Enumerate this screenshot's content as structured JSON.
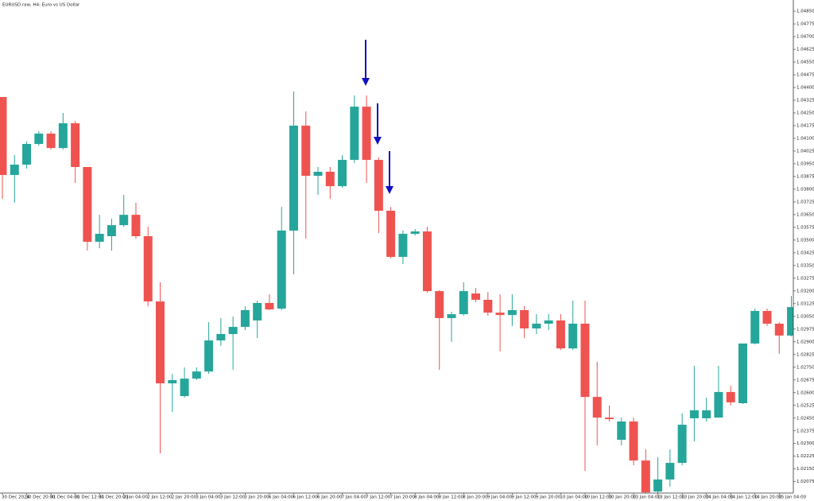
{
  "chart_data": {
    "type": "candlestick",
    "title": "EURUSD.raw, H4:  Euro vs US Dollar",
    "categories": [
      "30 Dec 2024",
      null,
      "30 Dec 20:00",
      null,
      "31 Dec 04:00",
      null,
      "31 Dec 12:00",
      null,
      "31 Dec 20:00",
      null,
      "2 Jan 04:00",
      null,
      "2 Jan 12:00",
      null,
      "2 Jan 20:00",
      null,
      "3 Jan 04:00",
      null,
      "3 Jan 12:00",
      null,
      "3 Jan 20:00",
      null,
      "6 Jan 04:00",
      null,
      "6 Jan 12:00",
      null,
      "6 Jan 20:00",
      null,
      "7 Jan 04:00",
      null,
      "7 Jan 12:00",
      null,
      "7 Jan 20:00",
      null,
      "8 Jan 04:00",
      null,
      "8 Jan 12:00",
      null,
      "8 Jan 20:00",
      null,
      "9 Jan 04:00",
      null,
      "9 Jan 12:00",
      null,
      "9 Jan 20:00",
      null,
      "10 Jan 04:00",
      null,
      "10 Jan 12:00",
      null,
      "10 Jan 20:00",
      null,
      "13 Jan 04:00",
      null,
      "13 Jan 12:00",
      null,
      "13 Jan 20:00",
      null,
      "14 Jan 04:00",
      null,
      "14 Jan 12:00",
      null,
      "14 Jan 20:00",
      null,
      "15 Jan 04:00",
      null
    ],
    "open": [
      1.04344,
      1.03884,
      1.03945,
      1.04067,
      1.04128,
      1.04043,
      1.04189,
      1.03931,
      1.0349,
      1.03523,
      1.03588,
      1.03649,
      1.03523,
      1.03138,
      1.02655,
      1.0258,
      1.02683,
      1.02725,
      1.02908,
      1.02946,
      1.02988,
      1.03026,
      1.03129,
      1.03096,
      1.03556,
      1.04175,
      1.03879,
      1.03903,
      1.03818,
      1.03973,
      1.04287,
      1.03973,
      1.03673,
      1.03401,
      1.03537,
      1.03551,
      1.03199,
      1.0304,
      1.03063,
      1.03185,
      1.03148,
      1.03072,
      1.03058,
      1.03087,
      1.02979,
      1.03007,
      1.03026,
      1.02861,
      1.03007,
      1.02575,
      1.02453,
      1.02322,
      1.0243,
      1.022,
      1.02017,
      1.02088,
      1.02186,
      1.02449,
      1.02449,
      1.02453,
      1.02604,
      1.02538,
      1.0289,
      1.03082,
      1.03007,
      1.02937
    ],
    "high": [
      1.04344,
      1.04001,
      1.04081,
      1.04142,
      1.04142,
      1.0425,
      1.04203,
      1.03931,
      1.03649,
      1.03626,
      1.03767,
      1.0372,
      1.03579,
      1.03251,
      1.02711,
      1.02749,
      1.02749,
      1.03016,
      1.0304,
      1.03049,
      1.0311,
      1.03143,
      1.0318,
      1.03696,
      1.04376,
      1.04259,
      1.03931,
      1.03931,
      1.04001,
      1.04353,
      1.04353,
      1.03987,
      1.03696,
      1.03556,
      1.03565,
      1.03579,
      1.03204,
      1.03077,
      1.03251,
      1.03218,
      1.03194,
      1.0318,
      1.0318,
      1.0311,
      1.03063,
      1.03063,
      1.03063,
      1.03143,
      1.03143,
      1.02782,
      1.02524,
      1.02453,
      1.02453,
      1.02266,
      1.02219,
      1.02266,
      1.02477,
      1.02758,
      1.02571,
      1.02758,
      1.02641,
      1.0289,
      1.03096,
      1.03096,
      1.03016,
      1.03171
    ],
    "low": [
      1.03743,
      1.0372,
      1.03921,
      1.04057,
      1.04034,
      1.04034,
      1.03837,
      1.03438,
      1.03452,
      1.03438,
      1.03579,
      1.03509,
      1.0311,
      1.02242,
      1.02486,
      1.02571,
      1.02674,
      1.02711,
      1.02876,
      1.02735,
      1.02969,
      1.02922,
      1.03087,
      1.03087,
      1.03298,
      1.03509,
      1.03767,
      1.03743,
      1.03809,
      1.03954,
      1.03837,
      1.03541,
      1.03391,
      1.03359,
      1.03527,
      1.0319,
      1.02735,
      1.02899,
      1.03054,
      1.03133,
      1.03054,
      1.02843,
      1.02993,
      1.02922,
      1.02946,
      1.02969,
      1.02852,
      1.02852,
      1.02139,
      1.02289,
      1.0243,
      1.02289,
      1.02172,
      1.02008,
      1.02008,
      1.02045,
      1.02172,
      1.02313,
      1.0243,
      1.02453,
      1.02524,
      1.02533,
      1.02885,
      1.02993,
      1.02829,
      1.02932
    ],
    "close": [
      1.03884,
      1.03945,
      1.04067,
      1.04128,
      1.04043,
      1.04189,
      1.03931,
      1.0349,
      1.03537,
      1.03588,
      1.03649,
      1.03523,
      1.03138,
      1.02655,
      1.02674,
      1.02683,
      1.02725,
      1.02908,
      1.02946,
      1.02988,
      1.03087,
      1.03129,
      1.03091,
      1.03556,
      1.04175,
      1.03879,
      1.03903,
      1.03818,
      1.03973,
      1.04287,
      1.03973,
      1.03673,
      1.03401,
      1.03537,
      1.03551,
      1.03199,
      1.0304,
      1.03063,
      1.03199,
      1.03148,
      1.03072,
      1.03058,
      1.03087,
      1.02979,
      1.03007,
      1.03026,
      1.02861,
      1.03007,
      1.02575,
      1.02453,
      1.02444,
      1.0243,
      1.022,
      1.02012,
      1.02088,
      1.02186,
      1.02411,
      1.02496,
      1.02496,
      1.02604,
      1.02543,
      1.0289,
      1.03082,
      1.03007,
      1.02937,
      1.03105
    ],
    "up_color": "#26a69a",
    "down_color": "#ef5350",
    "ylim": [
      1.02008,
      1.04916
    ],
    "yticks": [
      {
        "value": 1.0485,
        "label": "1.04850"
      },
      {
        "value": 1.04775,
        "label": "1.04775"
      },
      {
        "value": 1.047,
        "label": "1.04700"
      },
      {
        "value": 1.04625,
        "label": "1.04625"
      },
      {
        "value": 1.0455,
        "label": "1.04550"
      },
      {
        "value": 1.04475,
        "label": "1.04475"
      },
      {
        "value": 1.044,
        "label": "1.04400"
      },
      {
        "value": 1.04325,
        "label": "1.04325"
      },
      {
        "value": 1.0425,
        "label": "1.04250"
      },
      {
        "value": 1.04175,
        "label": "1.04175"
      },
      {
        "value": 1.041,
        "label": "1.04100"
      },
      {
        "value": 1.04025,
        "label": "1.04025"
      },
      {
        "value": 1.0395,
        "label": "1.03950"
      },
      {
        "value": 1.03875,
        "label": "1.03875"
      },
      {
        "value": 1.038,
        "label": "1.03800"
      },
      {
        "value": 1.03725,
        "label": "1.03725"
      },
      {
        "value": 1.0365,
        "label": "1.03650"
      },
      {
        "value": 1.03575,
        "label": "1.03575"
      },
      {
        "value": 1.035,
        "label": "1.03500"
      },
      {
        "value": 1.03425,
        "label": "1.03425"
      },
      {
        "value": 1.0335,
        "label": "1.03350"
      },
      {
        "value": 1.03275,
        "label": "1.03275"
      },
      {
        "value": 1.032,
        "label": "1.03200"
      },
      {
        "value": 1.03125,
        "label": "1.03125"
      },
      {
        "value": 1.0305,
        "label": "1.03050"
      },
      {
        "value": 1.02975,
        "label": "1.02975"
      },
      {
        "value": 1.029,
        "label": "1.02900"
      },
      {
        "value": 1.02825,
        "label": "1.02825"
      },
      {
        "value": 1.0275,
        "label": "1.02750"
      },
      {
        "value": 1.02675,
        "label": "1.02675"
      },
      {
        "value": 1.026,
        "label": "1.02600"
      },
      {
        "value": 1.02525,
        "label": "1.02525"
      },
      {
        "value": 1.0245,
        "label": "1.02450"
      },
      {
        "value": 1.02375,
        "label": "1.02375"
      },
      {
        "value": 1.023,
        "label": "1.02300"
      },
      {
        "value": 1.02225,
        "label": "1.02225"
      },
      {
        "value": 1.0215,
        "label": "1.02150"
      },
      {
        "value": 1.02075,
        "label": "1.02075"
      }
    ],
    "grid": false
  }
}
